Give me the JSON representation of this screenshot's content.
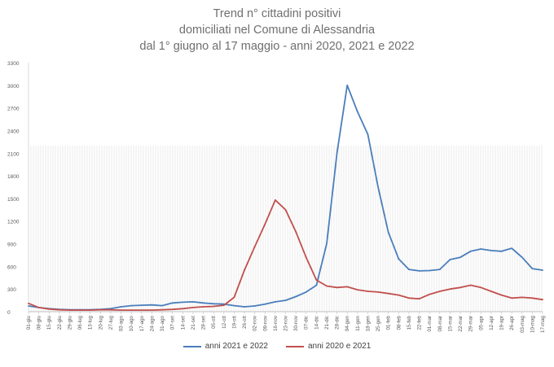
{
  "chart_data": {
    "type": "line",
    "title": [
      "Trend n° cittadini positivi",
      "domiciliati nel Comune di Alessandria",
      "dal 1° giugno al 17 maggio - anni 2020, 2021 e 2022"
    ],
    "xlabel": "",
    "ylabel": "",
    "ylim": [
      0,
      3300
    ],
    "yticks": [
      0,
      300,
      600,
      900,
      1200,
      1500,
      1800,
      2100,
      2400,
      2700,
      3000,
      3300
    ],
    "grid": false,
    "legend_position": "bottom",
    "xtick_labels": [
      "01-giu",
      "08-giu",
      "15-giu",
      "22-giu",
      "29-giu",
      "06-lug",
      "13-lug",
      "20-lug",
      "27-lug",
      "03-ago",
      "10-ago",
      "17-ago",
      "24-ago",
      "31-ago",
      "07-set",
      "14-set",
      "21-set",
      "28-set",
      "05-ott",
      "12-ott",
      "19-ott",
      "26-ott",
      "02-nov",
      "09-nov",
      "16-nov",
      "23-nov",
      "30-nov",
      "07-dic",
      "14-dic",
      "21-dic",
      "28-dic",
      "04-gen",
      "11-gen",
      "18-gen",
      "25-gen",
      "01-feb",
      "08-feb",
      "15-feb",
      "22-feb",
      "01-mar",
      "08-mar",
      "15-mar",
      "22-mar",
      "29-mar",
      "05-apr",
      "12-apr",
      "19-apr",
      "26-apr",
      "03-mag",
      "10-mag",
      "17-mag"
    ],
    "series": [
      {
        "name": "anni 2021 e 2022",
        "color": "#4a7ebb",
        "values": [
          75,
          55,
          40,
          30,
          25,
          25,
          25,
          30,
          40,
          65,
          80,
          85,
          90,
          80,
          115,
          125,
          130,
          115,
          105,
          100,
          80,
          65,
          75,
          100,
          130,
          150,
          200,
          260,
          350,
          900,
          2100,
          3000,
          2650,
          2350,
          1650,
          1050,
          700,
          560,
          540,
          545,
          560,
          690,
          720,
          800,
          830,
          810,
          800,
          840,
          720,
          570,
          550
        ]
      },
      {
        "name": "anni 2020 e 2021",
        "color": "#c0504d",
        "values": [
          110,
          55,
          35,
          25,
          20,
          20,
          20,
          25,
          25,
          20,
          20,
          20,
          20,
          25,
          30,
          40,
          55,
          65,
          70,
          85,
          190,
          550,
          860,
          1160,
          1480,
          1350,
          1060,
          720,
          420,
          340,
          320,
          330,
          290,
          270,
          260,
          240,
          220,
          180,
          170,
          230,
          270,
          300,
          320,
          350,
          320,
          270,
          220,
          180,
          190,
          180,
          160
        ]
      }
    ]
  }
}
